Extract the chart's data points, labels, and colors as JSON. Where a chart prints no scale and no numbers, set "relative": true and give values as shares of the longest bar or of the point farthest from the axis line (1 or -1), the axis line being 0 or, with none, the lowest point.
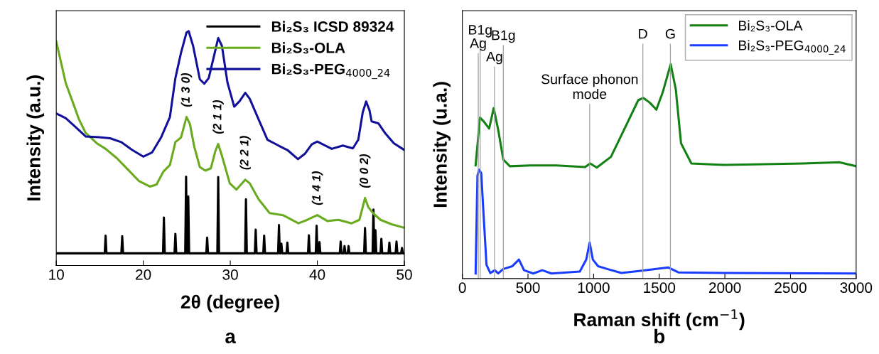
{
  "chart_data": [
    {
      "type": "line",
      "title": "a",
      "xlabel": "2θ (degree)",
      "ylabel": "Intensity (a.u.)",
      "relative": true,
      "xlim": [
        10,
        50
      ],
      "xticks": [
        10,
        20,
        30,
        40,
        50
      ],
      "tick_labels": "x",
      "legend": "top right",
      "grid": false,
      "marker": "none",
      "line_style": "solid",
      "series": [
        {
          "name": "Bi₂S₃ ICSD 89324",
          "color": "#000000",
          "x": [
            10,
            15.57,
            15.67,
            15.77,
            17.48,
            17.58,
            17.68,
            22.27,
            22.37,
            22.47,
            23.59,
            23.69,
            23.79,
            24.82,
            24.92,
            25.02,
            25.07,
            25.17,
            25.27,
            27.24,
            27.34,
            27.44,
            28.51,
            28.61,
            28.71,
            31.7,
            31.8,
            31.9,
            32.82,
            32.92,
            33.02,
            33.79,
            33.89,
            33.99,
            35.49,
            35.59,
            35.69,
            35.77,
            35.87,
            35.97,
            36.46,
            36.56,
            36.66,
            38.93,
            39.03,
            39.13,
            39.82,
            39.92,
            40.02,
            40.15,
            40.25,
            40.35,
            42.58,
            42.68,
            42.78,
            43.03,
            43.13,
            43.23,
            43.49,
            43.59,
            43.69,
            45.38,
            45.48,
            45.58,
            46.35,
            46.45,
            46.55,
            46.58,
            46.68,
            46.78,
            47.26,
            47.36,
            47.46,
            48.18,
            48.28,
            48.38,
            49.0,
            49.1,
            49.2,
            49.63,
            49.73,
            49.83,
            50
          ],
          "values": [
            0.052,
            0.052,
            0.127,
            0.052,
            0.052,
            0.125,
            0.052,
            0.052,
            0.205,
            0.052,
            0.052,
            0.135,
            0.052,
            0.052,
            0.379,
            0.052,
            0.052,
            0.295,
            0.052,
            0.052,
            0.119,
            0.052,
            0.052,
            0.378,
            0.052,
            0.052,
            0.283,
            0.052,
            0.052,
            0.153,
            0.052,
            0.052,
            0.127,
            0.052,
            0.052,
            0.173,
            0.052,
            0.052,
            0.093,
            0.052,
            0.052,
            0.098,
            0.052,
            0.052,
            0.129,
            0.052,
            0.052,
            0.17,
            0.052,
            0.052,
            0.1,
            0.052,
            0.052,
            0.102,
            0.052,
            0.052,
            0.083,
            0.052,
            0.052,
            0.083,
            0.052,
            0.052,
            0.16,
            0.052,
            0.052,
            0.239,
            0.052,
            0.052,
            0.151,
            0.052,
            0.052,
            0.114,
            0.052,
            0.052,
            0.098,
            0.052,
            0.052,
            0.102,
            0.052,
            0.052,
            0.075,
            0.052,
            0.052
          ]
        },
        {
          "name": "Bi₂S₃-OLA",
          "color": "#6aaa1e",
          "x": [
            10,
            11.08,
            11.85,
            12.61,
            13.38,
            14.65,
            15.67,
            16.94,
            18.22,
            19.49,
            20.76,
            21.53,
            22.29,
            23.06,
            23.69,
            24.33,
            24.97,
            25.35,
            25.86,
            26.5,
            27.13,
            27.77,
            28.28,
            28.61,
            29.04,
            29.94,
            30.7,
            31.72,
            32.23,
            33.25,
            34.52,
            36.05,
            37.83,
            38.85,
            40.0,
            41.15,
            42.42,
            43.95,
            44.84,
            45.48,
            45.86,
            46.5,
            47.26,
            48.54,
            50
          ],
          "values": [
            0.956,
            0.78,
            0.702,
            0.624,
            0.566,
            0.522,
            0.498,
            0.459,
            0.41,
            0.361,
            0.337,
            0.346,
            0.4,
            0.429,
            0.527,
            0.546,
            0.634,
            0.605,
            0.507,
            0.42,
            0.405,
            0.415,
            0.488,
            0.519,
            0.468,
            0.351,
            0.324,
            0.366,
            0.351,
            0.283,
            0.224,
            0.215,
            0.18,
            0.195,
            0.215,
            0.19,
            0.195,
            0.18,
            0.195,
            0.288,
            0.249,
            0.22,
            0.195,
            0.176,
            0.161
          ]
        },
        {
          "name": "Bi₂S₃-PEG$_{4000_24}$",
          "color": "#10109a",
          "x": [
            10,
            11.08,
            12.1,
            13.38,
            14.9,
            16.18,
            17.45,
            18.73,
            20.0,
            21.02,
            22.04,
            23.06,
            23.69,
            24.33,
            24.97,
            25.22,
            25.73,
            26.5,
            27.01,
            27.52,
            28.15,
            28.61,
            29.04,
            29.68,
            30.45,
            31.08,
            31.72,
            32.23,
            33.25,
            34.27,
            35.54,
            36.56,
            37.78,
            38.6,
            39.36,
            40.0,
            40.64,
            41.66,
            42.93,
            44.08,
            44.71,
            45.22,
            45.61,
            45.99,
            46.24,
            47.01,
            47.77,
            48.79,
            50
          ],
          "values": [
            0.649,
            0.629,
            0.595,
            0.551,
            0.548,
            0.543,
            0.527,
            0.493,
            0.465,
            0.483,
            0.546,
            0.634,
            0.8,
            0.907,
            0.995,
            1.0,
            0.937,
            0.795,
            0.776,
            0.8,
            0.898,
            0.971,
            0.937,
            0.78,
            0.678,
            0.702,
            0.737,
            0.712,
            0.624,
            0.537,
            0.512,
            0.493,
            0.454,
            0.478,
            0.517,
            0.529,
            0.517,
            0.498,
            0.512,
            0.5,
            0.537,
            0.654,
            0.7,
            0.663,
            0.615,
            0.607,
            0.566,
            0.522,
            0.493
          ]
        }
      ],
      "annotations": [
        {
          "text": "(1 3 0)",
          "x": 24.97,
          "y": 0.634
        },
        {
          "text": "(2 1 1)",
          "x": 28.61,
          "y": 0.519
        },
        {
          "text": "(2 2 1)",
          "x": 31.72,
          "y": 0.366
        },
        {
          "text": "(1 4 1)",
          "x": 40.0,
          "y": 0.215
        },
        {
          "text": "(0 0 2)",
          "x": 45.48,
          "y": 0.288
        }
      ]
    },
    {
      "type": "line",
      "title": "b",
      "xlabel": "Raman shift (cm$^{−1}$)",
      "ylabel": "Intensity (u.a.)",
      "relative": true,
      "xlim": [
        0,
        3000
      ],
      "xticks": [
        0,
        500,
        1000,
        1500,
        2000,
        2500,
        3000
      ],
      "tick_labels": "x",
      "legend": "top right",
      "grid": false,
      "marker": "none",
      "line_style": "solid",
      "series": [
        {
          "name": "Bi₂S₃-OLA",
          "color": "#138013",
          "x": [
            101,
            134,
            164,
            204,
            239,
            273,
            312,
            362,
            520,
            717,
            935,
            974,
            1024,
            1132,
            1251,
            1340,
            1379,
            1429,
            1478,
            1527,
            1587,
            1626,
            1666,
            1745,
            2002,
            2595,
            2871,
            3000
          ],
          "values": [
            0.528,
            0.751,
            0.732,
            0.7,
            0.795,
            0.694,
            0.555,
            0.524,
            0.528,
            0.528,
            0.52,
            0.537,
            0.518,
            0.568,
            0.719,
            0.832,
            0.843,
            0.82,
            0.788,
            0.87,
            1.0,
            0.883,
            0.631,
            0.537,
            0.53,
            0.537,
            0.543,
            0.524
          ]
        },
        {
          "name": "Bi₂S₃-PEG$_{4000_24}$",
          "color": "#1a3cff",
          "x": [
            101,
            115,
            128,
            144,
            160,
            184,
            213,
            247,
            273,
            312,
            381,
            431,
            470,
            540,
            609,
            678,
            895,
            944,
            970,
            994,
            1034,
            1103,
            1211,
            1370,
            1567,
            1646,
            2002,
            3000
          ],
          "values": [
            0.024,
            0.48,
            0.508,
            0.492,
            0.316,
            0.064,
            0.026,
            0.039,
            0.024,
            0.045,
            0.058,
            0.089,
            0.039,
            0.024,
            0.039,
            0.024,
            0.033,
            0.089,
            0.168,
            0.089,
            0.058,
            0.045,
            0.026,
            0.037,
            0.052,
            0.029,
            0.026,
            0.024
          ]
        }
      ],
      "ref_lines": [
        {
          "axis": "x",
          "value": 121,
          "label": "Ag",
          "color": "#a0a0a0"
        },
        {
          "axis": "x",
          "value": 136,
          "label": "B1g",
          "color": "#a0a0a0"
        },
        {
          "axis": "x",
          "value": 245,
          "label": "Ag",
          "color": "#a0a0a0"
        },
        {
          "axis": "x",
          "value": 312,
          "label": "B1g",
          "color": "#a0a0a0"
        },
        {
          "axis": "x",
          "value": 970,
          "label": "Surface phonon\nmode",
          "color": "#a0a0a0"
        },
        {
          "axis": "x",
          "value": 1375,
          "label": "D",
          "color": "#a0a0a0"
        },
        {
          "axis": "x",
          "value": 1585,
          "label": "G",
          "color": "#a0a0a0"
        }
      ]
    }
  ]
}
